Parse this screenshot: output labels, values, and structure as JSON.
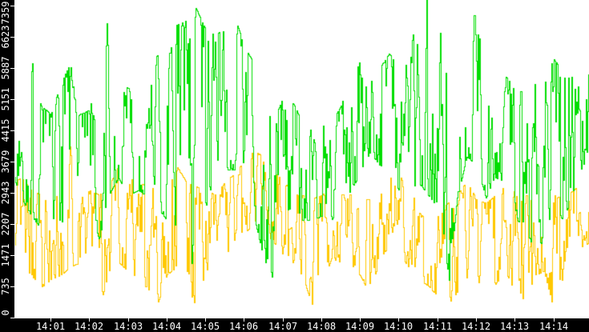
{
  "chart_data": {
    "type": "line",
    "title": "",
    "xlabel": "",
    "ylabel": "",
    "legend": "none",
    "grid": false,
    "plot_bg_color": "#ffffff",
    "axis_bg_color": "#000000",
    "axis_text_color": "#ffffff",
    "y_axis": {
      "min": 0,
      "max_tick": 7359,
      "top_of_plot_value": 7491,
      "tick_labels": [
        "0",
        "735",
        "1471",
        "2207",
        "2943",
        "3679",
        "4415",
        "5151",
        "5887",
        "6623",
        "7359"
      ],
      "tick_values": [
        0,
        735,
        1471,
        2207,
        2943,
        3679,
        4415,
        5151,
        5887,
        6623,
        7359
      ]
    },
    "x_axis": {
      "tick_labels": [
        "14:01",
        "14:02",
        "14:03",
        "14:04",
        "14:05",
        "14:06",
        "14:07",
        "14:08",
        "14:09",
        "14:10",
        "14:11",
        "14:12",
        "14:13",
        "14:14"
      ],
      "minutes_span_visible": [
        0.07,
        14.9
      ]
    },
    "series": [
      {
        "name": "green-series",
        "color": "#00dd00",
        "style": "1px vertical-stroke noisy line",
        "envelope_points_t_lo_hi": [
          [
            0.0,
            3400,
            4600
          ],
          [
            0.25,
            2800,
            5200
          ],
          [
            0.5,
            2400,
            6100
          ],
          [
            0.75,
            2100,
            5000
          ],
          [
            1.0,
            2200,
            4800
          ],
          [
            1.25,
            1950,
            5500
          ],
          [
            1.5,
            2400,
            6000
          ],
          [
            1.75,
            2700,
            4800
          ],
          [
            2.0,
            2600,
            4900
          ],
          [
            2.25,
            1850,
            6500
          ],
          [
            2.5,
            2900,
            7050
          ],
          [
            2.75,
            3300,
            5600
          ],
          [
            3.0,
            2870,
            5400
          ],
          [
            3.25,
            3000,
            5700
          ],
          [
            3.5,
            2870,
            5660
          ],
          [
            3.75,
            2600,
            6200
          ],
          [
            4.0,
            2300,
            6000
          ],
          [
            4.25,
            2000,
            6900
          ],
          [
            4.5,
            1900,
            7000
          ],
          [
            4.75,
            300,
            7300
          ],
          [
            5.0,
            2600,
            6800
          ],
          [
            5.25,
            3300,
            6700
          ],
          [
            5.5,
            3500,
            6800
          ],
          [
            5.75,
            3500,
            7100
          ],
          [
            6.0,
            3200,
            6400
          ],
          [
            6.25,
            2400,
            6000
          ],
          [
            6.5,
            1400,
            5000
          ],
          [
            6.75,
            890,
            4600
          ],
          [
            7.0,
            2500,
            5200
          ],
          [
            7.25,
            2600,
            5100
          ],
          [
            7.5,
            2300,
            4600
          ],
          [
            7.75,
            2300,
            4400
          ],
          [
            8.0,
            2400,
            6600
          ],
          [
            8.25,
            2300,
            4600
          ],
          [
            8.5,
            2600,
            5000
          ],
          [
            8.75,
            3000,
            5800
          ],
          [
            9.0,
            3400,
            6170
          ],
          [
            9.25,
            3900,
            6100
          ],
          [
            9.5,
            3600,
            5900
          ],
          [
            9.75,
            3500,
            6230
          ],
          [
            10.0,
            3000,
            5900
          ],
          [
            10.25,
            2900,
            6000
          ],
          [
            10.5,
            3200,
            7480
          ],
          [
            10.75,
            2900,
            7490
          ],
          [
            11.0,
            2600,
            7000
          ],
          [
            11.25,
            450,
            6900
          ],
          [
            11.5,
            2800,
            6500
          ],
          [
            11.75,
            3800,
            7250
          ],
          [
            12.0,
            3600,
            7100
          ],
          [
            12.25,
            2830,
            6200
          ],
          [
            12.5,
            3300,
            5800
          ],
          [
            12.75,
            3200,
            5700
          ],
          [
            13.0,
            2600,
            5400
          ],
          [
            13.25,
            1585,
            5300
          ],
          [
            13.5,
            1900,
            5500
          ],
          [
            13.75,
            1700,
            5600
          ],
          [
            14.0,
            2400,
            6100
          ],
          [
            14.25,
            2340,
            5800
          ],
          [
            14.5,
            2900,
            6000
          ],
          [
            14.75,
            3600,
            6770
          ],
          [
            15.0,
            3800,
            6300
          ]
        ]
      },
      {
        "name": "yellow-series",
        "color": "#ffc800",
        "style": "1px vertical-stroke noisy line",
        "envelope_points_t_lo_hi": [
          [
            0.0,
            1400,
            3200
          ],
          [
            0.25,
            1100,
            3300
          ],
          [
            0.5,
            1000,
            3000
          ],
          [
            0.75,
            700,
            2900
          ],
          [
            1.0,
            900,
            3100
          ],
          [
            1.25,
            1000,
            3400
          ],
          [
            1.5,
            1200,
            4280
          ],
          [
            1.75,
            1300,
            3200
          ],
          [
            2.0,
            1200,
            3000
          ],
          [
            2.25,
            190,
            2900
          ],
          [
            2.5,
            1100,
            3100
          ],
          [
            2.75,
            1300,
            3585
          ],
          [
            3.0,
            1100,
            3300
          ],
          [
            3.25,
            900,
            3200
          ],
          [
            3.5,
            700,
            3100
          ],
          [
            3.75,
            300,
            3000
          ],
          [
            4.0,
            1000,
            3300
          ],
          [
            4.25,
            1200,
            3585
          ],
          [
            4.5,
            800,
            3200
          ],
          [
            4.75,
            260,
            3100
          ],
          [
            5.0,
            1100,
            3000
          ],
          [
            5.25,
            1300,
            2900
          ],
          [
            5.5,
            1500,
            3200
          ],
          [
            5.75,
            1700,
            3400
          ],
          [
            6.0,
            2000,
            3700
          ],
          [
            6.25,
            2200,
            3940
          ],
          [
            6.5,
            2000,
            3800
          ],
          [
            6.75,
            1800,
            3500
          ],
          [
            7.0,
            1500,
            3200
          ],
          [
            7.25,
            1300,
            3000
          ],
          [
            7.5,
            1000,
            2900
          ],
          [
            7.75,
            320,
            2800
          ],
          [
            8.0,
            700,
            2900
          ],
          [
            8.25,
            1400,
            3000
          ],
          [
            8.5,
            1300,
            2900
          ],
          [
            8.75,
            1200,
            2900
          ],
          [
            9.0,
            1000,
            2800
          ],
          [
            9.25,
            540,
            2800
          ],
          [
            9.5,
            1400,
            3100
          ],
          [
            9.75,
            1700,
            4060
          ],
          [
            10.0,
            1500,
            3400
          ],
          [
            10.25,
            1200,
            3200
          ],
          [
            10.5,
            900,
            2500
          ],
          [
            10.75,
            760,
            2260
          ],
          [
            11.0,
            500,
            2400
          ],
          [
            11.25,
            300,
            2700
          ],
          [
            11.5,
            600,
            2900
          ],
          [
            11.75,
            940,
            3210
          ],
          [
            12.0,
            900,
            2800
          ],
          [
            12.25,
            600,
            2700
          ],
          [
            12.5,
            800,
            2900
          ],
          [
            12.75,
            1100,
            3100
          ],
          [
            13.0,
            600,
            2960
          ],
          [
            13.25,
            0,
            2900
          ],
          [
            13.5,
            1000,
            2800
          ],
          [
            13.75,
            1100,
            2700
          ],
          [
            14.0,
            190,
            2900
          ],
          [
            14.25,
            1000,
            2800
          ],
          [
            14.5,
            1500,
            3000
          ],
          [
            14.75,
            1700,
            3210
          ],
          [
            15.0,
            1800,
            3100
          ]
        ]
      }
    ]
  }
}
